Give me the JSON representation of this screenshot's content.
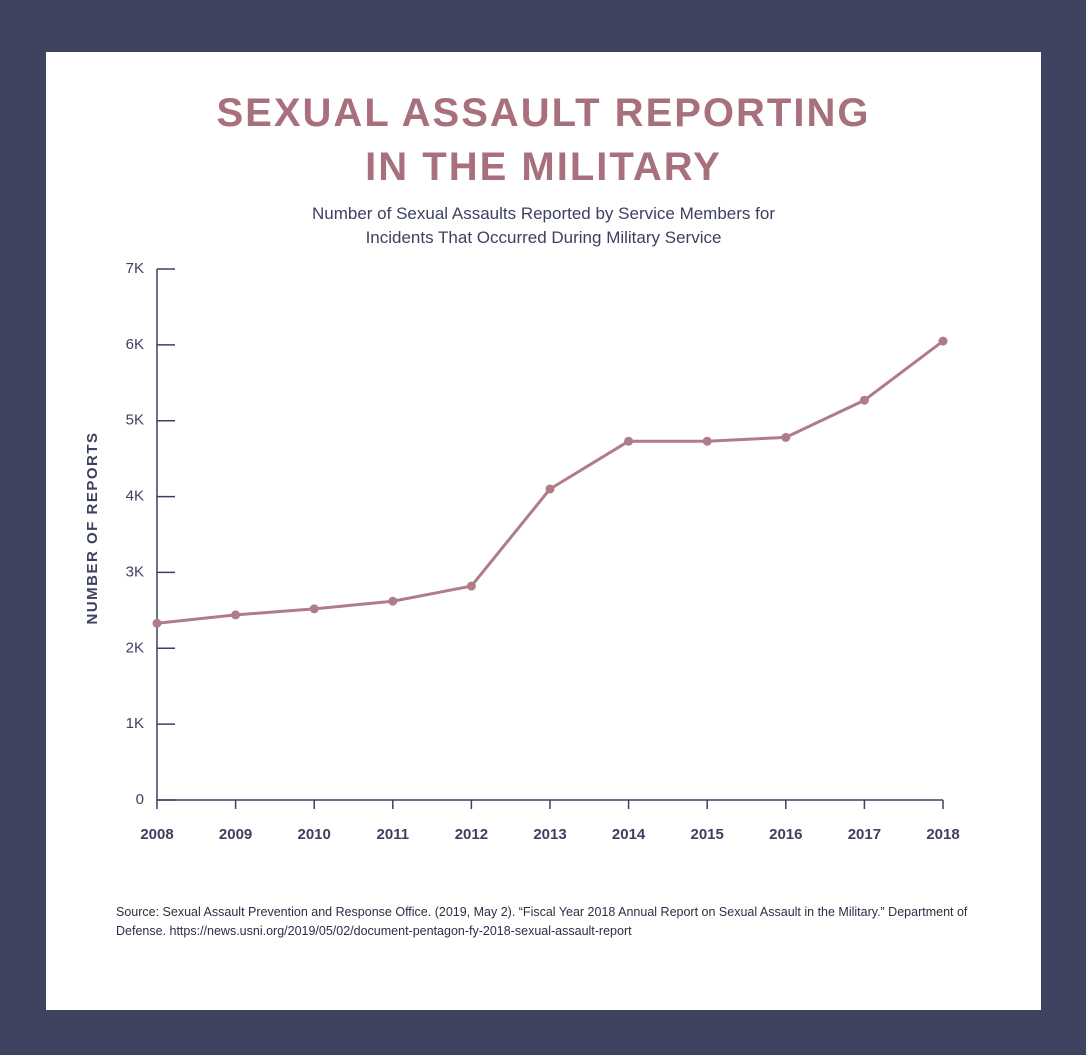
{
  "chart_data": {
    "type": "line",
    "title": "SEXUAL ASSAULT REPORTING IN THE MILITARY",
    "subtitle": "Number of Sexual Assaults Reported by Service Members for Incidents That Occurred During Military Service",
    "y_label": "NUMBER OF REPORTS",
    "source": "Source: Sexual Assault Prevention and Response Office. (2019, May 2). “Fiscal Year 2018 Annual Report on Sexual Assault in the Military.” Department of Defense. https://news.usni.org/2019/05/02/document-pentagon-fy-2018-sexual-assault-report",
    "categories": [
      "2008",
      "2009",
      "2010",
      "2011",
      "2012",
      "2013",
      "2014",
      "2015",
      "2016",
      "2017",
      "2018"
    ],
    "series": [
      {
        "name": "Reports",
        "color": "#b07c87",
        "values": [
          2330,
          2440,
          2520,
          2620,
          2820,
          4100,
          4730,
          4730,
          4780,
          5270,
          6050
        ]
      }
    ],
    "ylim": [
      0,
      7000
    ],
    "yticks": [
      0,
      {
        "value": 1000,
        "label": "1K"
      },
      {
        "value": 2000,
        "label": "2K"
      },
      {
        "value": 3000,
        "label": "3K"
      },
      {
        "value": 4000,
        "label": "4K"
      },
      {
        "value": 5000,
        "label": "5K"
      },
      {
        "value": 6000,
        "label": "6K"
      },
      {
        "value": 7000,
        "label": "7K"
      }
    ]
  }
}
